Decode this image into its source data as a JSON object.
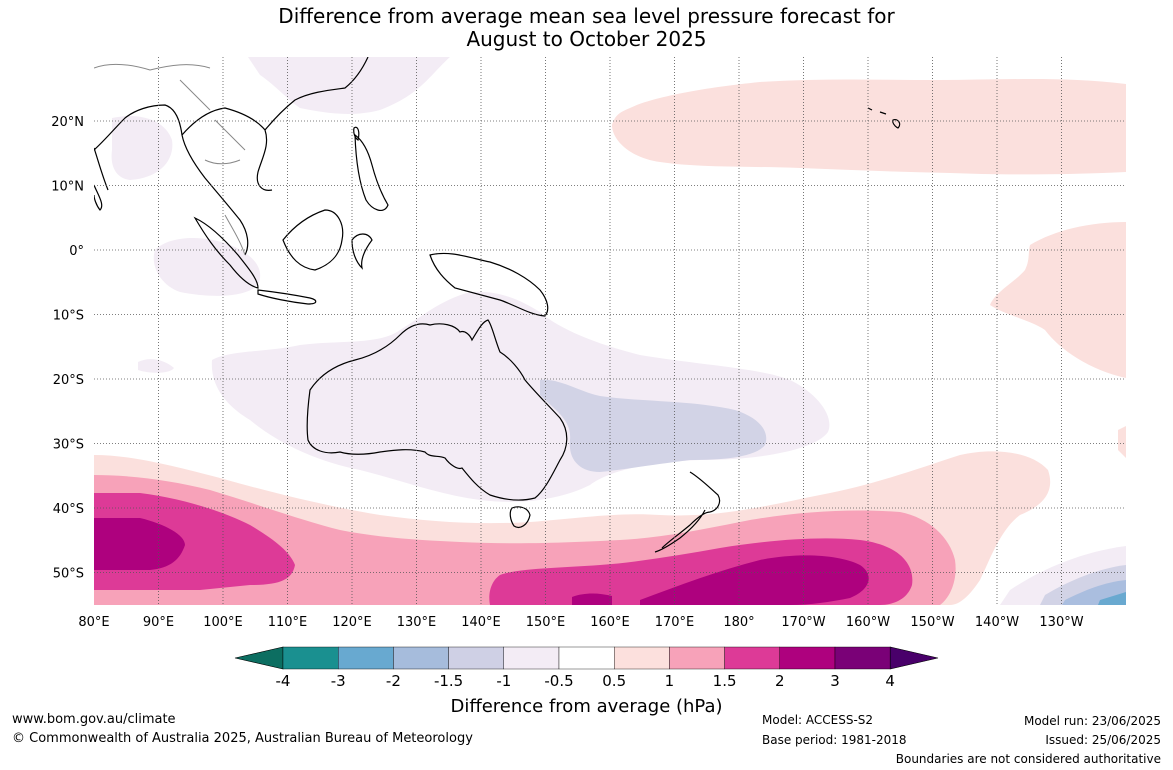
{
  "title": {
    "line1": "Difference from average mean sea level pressure forecast for",
    "line2": "August to October 2025"
  },
  "map": {
    "lon_labels": [
      "80°E",
      "90°E",
      "100°E",
      "110°E",
      "120°E",
      "130°E",
      "140°E",
      "150°E",
      "160°E",
      "170°E",
      "180°",
      "170°W",
      "160°W",
      "150°W",
      "140°W",
      "130°W"
    ],
    "lat_labels": [
      "20°N",
      "10°N",
      "0°",
      "10°S",
      "20°S",
      "30°S",
      "40°S",
      "50°S"
    ],
    "gridlines": true,
    "colors": {
      "ocean": "#ffffff",
      "land_outline": "#000000",
      "neg_0_5_1": "#f3ecf5",
      "neg_1_1_5": "#d2d3e6",
      "neg_1_5_2": "#aabedf",
      "neg_2_3": "#69a9d0",
      "pos_0_5_1": "#fbe0dd",
      "pos_1_1_5": "#f7a2b9",
      "pos_1_5_2": "#dd3a97",
      "pos_2_3": "#ae017e",
      "gridline": "#555555"
    }
  },
  "colorbar": {
    "labels": [
      "-4",
      "-3",
      "-2",
      "-1.5",
      "-1",
      "-0.5",
      "0.5",
      "1",
      "1.5",
      "2",
      "3",
      "4"
    ],
    "colors": [
      "#0c6e61",
      "#1a9090",
      "#68a9d0",
      "#a6bcdc",
      "#cfd0e5",
      "#f3ecf5",
      "#ffffff",
      "#fce0dd",
      "#f7a2b9",
      "#dd3a97",
      "#ae017e",
      "#7a0177",
      "#49006a"
    ],
    "title": "Difference from average (hPa)"
  },
  "footer": {
    "url": "www.bom.gov.au/climate",
    "copyright": "© Commonwealth of Australia 2025, Australian Bureau of Meteorology",
    "model": "Model: ACCESS-S2",
    "base_period": "Base period: 1981-2018",
    "model_run": "Model run: 23/06/2025",
    "issued": "Issued: 25/06/2025",
    "disclaimer": "Boundaries are not considered authoritative"
  }
}
